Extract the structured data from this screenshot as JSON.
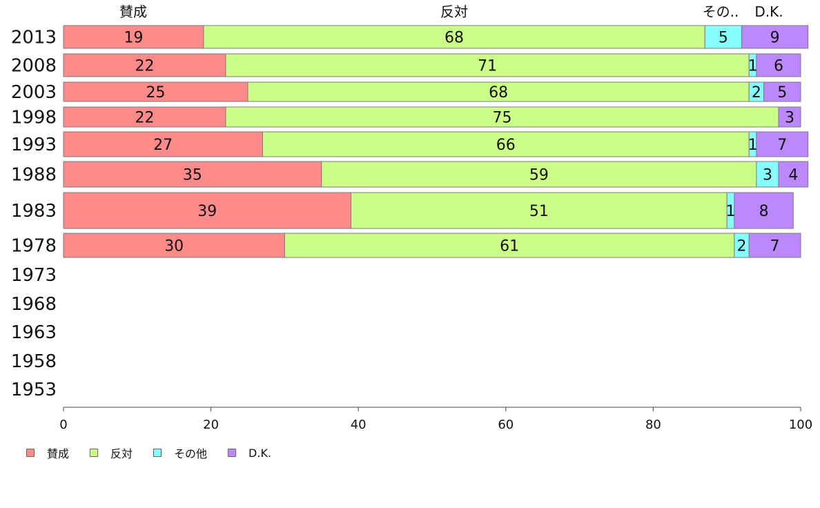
{
  "chart_data": {
    "type": "bar",
    "orientation": "horizontal",
    "stacked": true,
    "categories": [
      "2013",
      "2008",
      "2003",
      "1998",
      "1993",
      "1988",
      "1983",
      "1978",
      "1973",
      "1968",
      "1963",
      "1958",
      "1953"
    ],
    "series": [
      {
        "name": "賛成",
        "color": "#ff8a8a",
        "values": [
          19,
          22,
          25,
          22,
          27,
          35,
          39,
          30,
          null,
          null,
          null,
          null,
          null
        ]
      },
      {
        "name": "反対",
        "color": "#ccff88",
        "values": [
          68,
          71,
          68,
          75,
          66,
          59,
          51,
          61,
          null,
          null,
          null,
          null,
          null
        ]
      },
      {
        "name": "その他",
        "color": "#88ffff",
        "values": [
          5,
          1,
          2,
          0,
          1,
          3,
          1,
          2,
          null,
          null,
          null,
          null,
          null
        ]
      },
      {
        "name": "D.K.",
        "color": "#bb88ff",
        "values": [
          9,
          6,
          5,
          3,
          7,
          4,
          8,
          7,
          null,
          null,
          null,
          null,
          null
        ]
      }
    ],
    "column_headers": [
      "賛成",
      "反対",
      "その..",
      "D.K."
    ],
    "xlim": [
      0,
      100
    ],
    "xticks": [
      0,
      20,
      40,
      60,
      80,
      100
    ],
    "grid": false,
    "legend_position": "bottom-left"
  }
}
